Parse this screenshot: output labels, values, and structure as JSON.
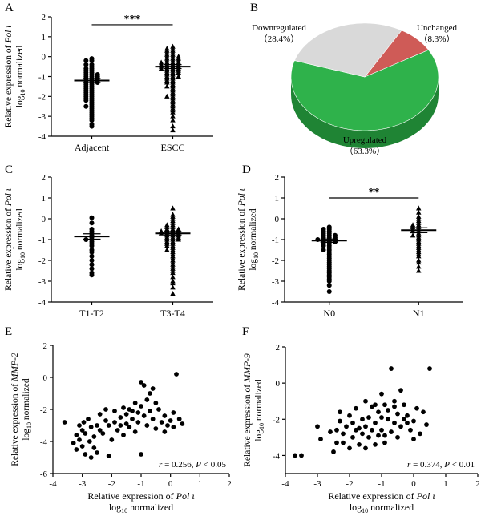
{
  "chart_data": [
    {
      "panel": "A",
      "type": "scatter",
      "ylabel": [
        "Relative expression of Pol ι",
        "log10 normalized"
      ],
      "categories": [
        "Adjacent",
        "ESCC"
      ],
      "ylim": [
        -4,
        2
      ],
      "yticks": [
        -4,
        -3,
        -2,
        -1,
        0,
        1,
        2
      ],
      "significance": "***",
      "series": [
        {
          "marker": "circle",
          "mean": -1.2,
          "sem": 0.1,
          "values": [
            -0.1,
            -0.2,
            -0.2,
            -0.4,
            -0.4,
            -0.5,
            -0.6,
            -0.6,
            -0.7,
            -0.7,
            -0.8,
            -0.8,
            -0.9,
            -0.9,
            -0.9,
            -1.0,
            -1.0,
            -1.0,
            -1.1,
            -1.1,
            -1.1,
            -1.2,
            -1.2,
            -1.2,
            -1.3,
            -1.3,
            -1.3,
            -1.4,
            -1.4,
            -1.5,
            -1.5,
            -1.6,
            -1.6,
            -1.7,
            -1.7,
            -1.8,
            -1.8,
            -1.9,
            -1.9,
            -2.0,
            -2.0,
            -2.1,
            -2.1,
            -2.2,
            -2.2,
            -2.3,
            -2.4,
            -2.5,
            -2.5,
            -2.6,
            -2.7,
            -2.8,
            -2.9,
            -3.0,
            -3.1,
            -3.2,
            -3.4,
            -3.5
          ]
        },
        {
          "marker": "triangle",
          "mean": -0.5,
          "sem": 0.1,
          "values": [
            0.5,
            0.4,
            0.4,
            0.3,
            0.3,
            0.2,
            0.2,
            0.1,
            0.1,
            0.0,
            0.0,
            0.0,
            -0.1,
            -0.1,
            -0.1,
            -0.2,
            -0.2,
            -0.2,
            -0.3,
            -0.3,
            -0.3,
            -0.3,
            -0.4,
            -0.4,
            -0.4,
            -0.4,
            -0.5,
            -0.5,
            -0.5,
            -0.5,
            -0.6,
            -0.6,
            -0.6,
            -0.6,
            -0.7,
            -0.7,
            -0.7,
            -0.8,
            -0.8,
            -0.8,
            -0.9,
            -0.9,
            -1.0,
            -1.0,
            -1.0,
            -1.1,
            -1.1,
            -1.2,
            -1.2,
            -1.3,
            -1.3,
            -1.4,
            -1.5,
            -1.5,
            -1.6,
            -1.7,
            -1.8,
            -1.9,
            -2.0,
            -2.0,
            -2.1,
            -2.2,
            -2.3,
            -2.4,
            -2.5,
            -2.6,
            -2.7,
            -2.8,
            -3.0,
            -3.2,
            -3.5,
            -3.7
          ]
        }
      ]
    },
    {
      "panel": "B",
      "type": "pie",
      "slices": [
        {
          "label": "Upregulated",
          "pct_text": "（63.3%）",
          "value": 63.3,
          "color": "#2fb24b"
        },
        {
          "label": "Downregulated",
          "pct_text": "（28.4%）",
          "value": 28.4,
          "color": "#d9d9d9"
        },
        {
          "label": "Unchanged",
          "pct_text": "（8.3%）",
          "value": 8.3,
          "color": "#cf5b57"
        }
      ]
    },
    {
      "panel": "C",
      "type": "scatter",
      "ylabel": [
        "Relative expression of Pol ι",
        "log10 normalized"
      ],
      "categories": [
        "T1-T2",
        "T3-T4"
      ],
      "ylim": [
        -4,
        2
      ],
      "yticks": [
        -4,
        -3,
        -2,
        -1,
        0,
        1,
        2
      ],
      "significance": "",
      "series": [
        {
          "marker": "circle",
          "mean": -0.85,
          "sem": 0.13,
          "values": [
            0.05,
            -0.2,
            -0.5,
            -0.6,
            -0.7,
            -0.8,
            -0.9,
            -1.0,
            -1.0,
            -1.1,
            -1.2,
            -1.3,
            -1.5,
            -1.6,
            -1.8,
            -2.0,
            -2.2,
            -2.4,
            -2.6,
            -2.7
          ]
        },
        {
          "marker": "triangle",
          "mean": -0.7,
          "sem": 0.08,
          "values": [
            0.5,
            0.2,
            0.1,
            0.0,
            -0.1,
            -0.2,
            -0.3,
            -0.3,
            -0.4,
            -0.4,
            -0.5,
            -0.5,
            -0.5,
            -0.6,
            -0.6,
            -0.6,
            -0.6,
            -0.7,
            -0.7,
            -0.7,
            -0.7,
            -0.8,
            -0.8,
            -0.8,
            -0.9,
            -0.9,
            -0.9,
            -1.0,
            -1.0,
            -1.0,
            -1.1,
            -1.1,
            -1.2,
            -1.2,
            -1.3,
            -1.3,
            -1.4,
            -1.5,
            -1.5,
            -1.6,
            -1.7,
            -1.8,
            -1.9,
            -2.0,
            -2.1,
            -2.2,
            -2.3,
            -2.4,
            -2.5,
            -2.6,
            -2.8,
            -3.0,
            -3.1,
            -3.3,
            -3.6
          ]
        }
      ]
    },
    {
      "panel": "D",
      "type": "scatter",
      "ylabel": [
        "Relative expression of Pol ι",
        "log10 normalized"
      ],
      "categories": [
        "N0",
        "N1"
      ],
      "ylim": [
        -4,
        2
      ],
      "yticks": [
        -4,
        -3,
        -2,
        -1,
        0,
        1,
        2
      ],
      "significance": "**",
      "series": [
        {
          "marker": "circle",
          "mean": -1.05,
          "sem": 0.08,
          "values": [
            -0.4,
            -0.5,
            -0.5,
            -0.6,
            -0.6,
            -0.7,
            -0.7,
            -0.8,
            -0.8,
            -0.8,
            -0.9,
            -0.9,
            -0.9,
            -1.0,
            -1.0,
            -1.0,
            -1.0,
            -1.1,
            -1.1,
            -1.1,
            -1.2,
            -1.2,
            -1.3,
            -1.3,
            -1.4,
            -1.5,
            -1.5,
            -1.6,
            -1.7,
            -1.8,
            -1.9,
            -2.0,
            -2.1,
            -2.2,
            -2.3,
            -2.4,
            -2.5,
            -2.6,
            -2.7,
            -2.8,
            -2.9,
            -3.0,
            -3.2,
            -3.5
          ]
        },
        {
          "marker": "triangle",
          "mean": -0.55,
          "sem": 0.12,
          "values": [
            0.5,
            0.3,
            0.1,
            0.0,
            -0.1,
            -0.2,
            -0.3,
            -0.3,
            -0.4,
            -0.4,
            -0.5,
            -0.5,
            -0.6,
            -0.6,
            -0.7,
            -0.8,
            -0.8,
            -0.9,
            -1.0,
            -1.1,
            -1.2,
            -1.3,
            -1.4,
            -1.5,
            -1.6,
            -1.7,
            -1.8,
            -2.0,
            -2.1,
            -2.3,
            -2.5
          ]
        }
      ]
    },
    {
      "panel": "E",
      "type": "scatter",
      "xlabel": [
        "Relative expression of Pol ι",
        "log10 normalized"
      ],
      "ylabel": [
        "Relative expression of MMP-2",
        "log10 normalized"
      ],
      "xlim": [
        -4,
        2
      ],
      "ylim": [
        -6,
        2
      ],
      "xticks": [
        -4,
        -3,
        -2,
        -1,
        0,
        1,
        2
      ],
      "yticks": [
        -6,
        -4,
        -2,
        0,
        2
      ],
      "stat_r": "r = 0.256,",
      "stat_p": "P < 0.05",
      "points": [
        [
          -3.6,
          -2.8
        ],
        [
          -3.3,
          -4.1
        ],
        [
          -3.2,
          -4.5
        ],
        [
          -3.2,
          -3.6
        ],
        [
          -3.1,
          -3.9
        ],
        [
          -3.1,
          -3.0
        ],
        [
          -3.0,
          -4.3
        ],
        [
          -3.0,
          -3.3
        ],
        [
          -2.95,
          -2.8
        ],
        [
          -2.9,
          -4.8
        ],
        [
          -2.9,
          -3.5
        ],
        [
          -2.8,
          -2.6
        ],
        [
          -2.75,
          -4.0
        ],
        [
          -2.7,
          -3.1
        ],
        [
          -2.7,
          -5.0
        ],
        [
          -2.6,
          -4.4
        ],
        [
          -2.6,
          -3.7
        ],
        [
          -2.5,
          -3.0
        ],
        [
          -2.5,
          -4.7
        ],
        [
          -2.4,
          -2.3
        ],
        [
          -2.4,
          -3.3
        ],
        [
          -2.3,
          -3.5
        ],
        [
          -2.2,
          -2.7
        ],
        [
          -2.1,
          -3.0
        ],
        [
          -2.0,
          -3.9
        ],
        [
          -1.9,
          -2.8
        ],
        [
          -1.9,
          -2.1
        ],
        [
          -1.8,
          -3.3
        ],
        [
          -1.7,
          -2.5
        ],
        [
          -1.6,
          -1.9
        ],
        [
          -1.6,
          -3.6
        ],
        [
          -1.5,
          -2.3
        ],
        [
          -1.5,
          -2.9
        ],
        [
          -1.4,
          -2.0
        ],
        [
          -1.4,
          -3.1
        ],
        [
          -1.3,
          -2.6
        ],
        [
          -1.3,
          -2.1
        ],
        [
          -1.2,
          -1.6
        ],
        [
          -1.2,
          -3.4
        ],
        [
          -1.1,
          -2.8
        ],
        [
          -1.1,
          -2.2
        ],
        [
          -1.0,
          -0.3
        ],
        [
          -1.0,
          -1.8
        ],
        [
          -0.9,
          -0.5
        ],
        [
          -0.9,
          -2.4
        ],
        [
          -0.8,
          -1.4
        ],
        [
          -0.8,
          -3.0
        ],
        [
          -0.7,
          -1.0
        ],
        [
          -0.7,
          -2.1
        ],
        [
          -0.6,
          -0.7
        ],
        [
          -0.6,
          -2.6
        ],
        [
          -0.5,
          -3.2
        ],
        [
          -0.5,
          -1.6
        ],
        [
          -0.4,
          -2.0
        ],
        [
          -0.3,
          -2.8
        ],
        [
          -0.2,
          -3.4
        ],
        [
          -0.2,
          -2.4
        ],
        [
          -0.1,
          -3.0
        ],
        [
          0.0,
          -2.7
        ],
        [
          0.1,
          -2.2
        ],
        [
          0.1,
          -3.1
        ],
        [
          0.2,
          0.2
        ],
        [
          0.3,
          -2.6
        ],
        [
          0.4,
          -2.9
        ],
        [
          -2.1,
          -4.9
        ],
        [
          -1.7,
          -3.0
        ],
        [
          -2.2,
          -2.0
        ],
        [
          -1.0,
          -4.8
        ]
      ]
    },
    {
      "panel": "F",
      "type": "scatter",
      "xlabel": [
        "Relative expression of Pol ι",
        "log10 normalized"
      ],
      "ylabel": [
        "Relative expression of MMP-9",
        "log10 normalized"
      ],
      "xlim": [
        -4,
        2
      ],
      "ylim": [
        -5,
        2
      ],
      "xticks": [
        -4,
        -3,
        -2,
        -1,
        0,
        1,
        2
      ],
      "yticks": [
        -4,
        -2,
        0,
        2
      ],
      "stat_r": "r = 0.374,",
      "stat_p": "P < 0.01",
      "points": [
        [
          -3.7,
          -4.0
        ],
        [
          -3.5,
          -4.0
        ],
        [
          -3.0,
          -2.4
        ],
        [
          -2.9,
          -3.1
        ],
        [
          -2.5,
          -3.8
        ],
        [
          -2.4,
          -2.6
        ],
        [
          -2.3,
          -1.6
        ],
        [
          -2.3,
          -2.1
        ],
        [
          -2.2,
          -2.8
        ],
        [
          -2.2,
          -3.3
        ],
        [
          -2.1,
          -2.4
        ],
        [
          -2.0,
          -3.6
        ],
        [
          -2.0,
          -1.8
        ],
        [
          -1.9,
          -2.2
        ],
        [
          -1.9,
          -3.0
        ],
        [
          -1.8,
          -2.6
        ],
        [
          -1.8,
          -1.4
        ],
        [
          -1.7,
          -3.4
        ],
        [
          -1.6,
          -2.0
        ],
        [
          -1.6,
          -2.8
        ],
        [
          -1.5,
          -2.4
        ],
        [
          -1.5,
          -3.6
        ],
        [
          -1.4,
          -1.9
        ],
        [
          -1.4,
          -3.0
        ],
        [
          -1.3,
          -2.6
        ],
        [
          -1.3,
          -1.3
        ],
        [
          -1.2,
          -2.2
        ],
        [
          -1.2,
          -3.4
        ],
        [
          -1.1,
          -1.6
        ],
        [
          -1.1,
          -2.9
        ],
        [
          -1.0,
          -0.6
        ],
        [
          -1.0,
          -1.9
        ],
        [
          -1.0,
          -2.6
        ],
        [
          -0.9,
          -1.2
        ],
        [
          -0.9,
          -3.3
        ],
        [
          -0.8,
          -2.0
        ],
        [
          -0.8,
          -1.5
        ],
        [
          -0.7,
          0.8
        ],
        [
          -0.7,
          -2.7
        ],
        [
          -0.6,
          -1.0
        ],
        [
          -0.6,
          -2.2
        ],
        [
          -0.5,
          -1.7
        ],
        [
          -0.5,
          -3.0
        ],
        [
          -0.4,
          -0.4
        ],
        [
          -0.4,
          -2.4
        ],
        [
          -0.3,
          -1.2
        ],
        [
          -0.3,
          -2.0
        ],
        [
          -0.2,
          -1.8
        ],
        [
          -0.1,
          -2.6
        ],
        [
          0.0,
          -3.1
        ],
        [
          0.0,
          -2.1
        ],
        [
          0.1,
          -1.4
        ],
        [
          0.2,
          -2.8
        ],
        [
          0.3,
          -1.6
        ],
        [
          0.4,
          -2.3
        ],
        [
          0.5,
          0.8
        ],
        [
          -1.7,
          -2.5
        ],
        [
          -2.6,
          -2.7
        ],
        [
          -1.2,
          -1.2
        ],
        [
          -0.9,
          -2.9
        ],
        [
          -1.5,
          -1.0
        ],
        [
          -2.4,
          -3.3
        ],
        [
          -0.6,
          -1.3
        ],
        [
          -0.2,
          -2.2
        ]
      ]
    }
  ],
  "panel_letters": {
    "a": "A",
    "b": "B",
    "c": "C",
    "d": "D",
    "e": "E",
    "f": "F"
  }
}
